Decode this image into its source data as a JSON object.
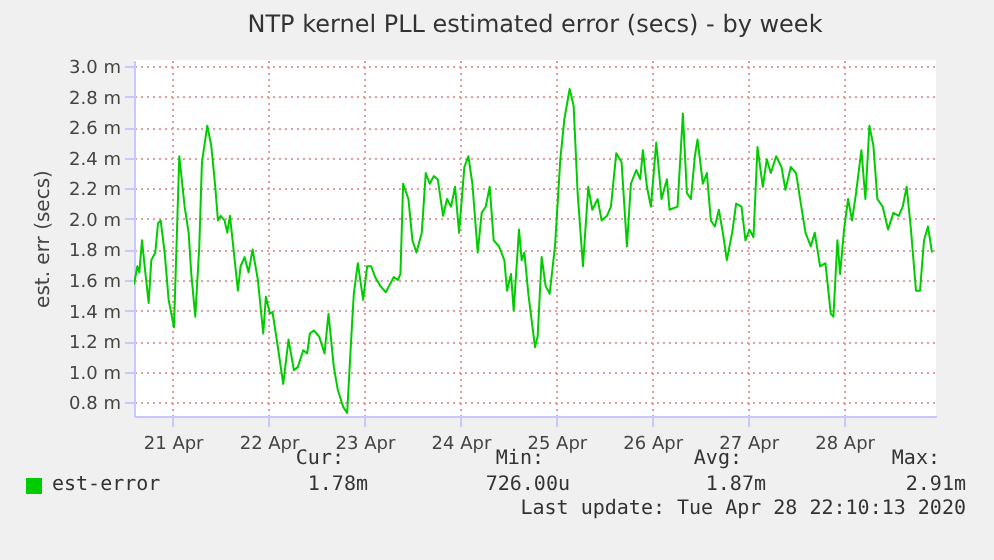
{
  "chart_data": {
    "type": "line",
    "title": "NTP kernel PLL estimated error (secs) - by week",
    "ylabel": "est. err (secs)",
    "xlim": [
      "2020-04-20T14:20",
      "2020-04-28T23:00"
    ],
    "xticks": [
      {
        "value": "2020-04-21T00:00",
        "label": "21 Apr"
      },
      {
        "value": "2020-04-22T00:00",
        "label": "22 Apr"
      },
      {
        "value": "2020-04-23T00:00",
        "label": "23 Apr"
      },
      {
        "value": "2020-04-24T00:00",
        "label": "24 Apr"
      },
      {
        "value": "2020-04-25T00:00",
        "label": "25 Apr"
      },
      {
        "value": "2020-04-26T00:00",
        "label": "26 Apr"
      },
      {
        "value": "2020-04-27T00:00",
        "label": "27 Apr"
      },
      {
        "value": "2020-04-28T00:00",
        "label": "28 Apr"
      }
    ],
    "ylim": [
      0.71,
      3.04
    ],
    "yticks": [
      {
        "value": 0.8,
        "label": "0.8 m"
      },
      {
        "value": 1.0,
        "label": "1.0 m"
      },
      {
        "value": 1.2,
        "label": "1.2 m"
      },
      {
        "value": 1.4,
        "label": "1.4 m"
      },
      {
        "value": 1.6,
        "label": "1.6 m"
      },
      {
        "value": 1.8,
        "label": "1.8 m"
      },
      {
        "value": 2.0,
        "label": "2.0 m"
      },
      {
        "value": 2.2,
        "label": "2.2 m"
      },
      {
        "value": 2.4,
        "label": "2.4 m"
      },
      {
        "value": 2.6,
        "label": "2.6 m"
      },
      {
        "value": 2.8,
        "label": "2.8 m"
      },
      {
        "value": 3.0,
        "label": "3.0 m"
      }
    ],
    "grid": true,
    "legend": "bottom left",
    "annotations": [
      "Cur:",
      "Min:",
      "Avg:",
      "Max:",
      "1.78m",
      "726.00u",
      "1.87m",
      "2.91m",
      "Last update: Tue Apr 28 22:10:13 2020"
    ],
    "series": [
      {
        "name": "est-error",
        "color": "#00cc00",
        "x": [
          "2020-04-20T14:20",
          "2020-04-20T15:10",
          "2020-04-20T15:40",
          "2020-04-20T16:20",
          "2020-04-20T17:00",
          "2020-04-20T18:00",
          "2020-04-20T18:40",
          "2020-04-20T19:40",
          "2020-04-20T20:20",
          "2020-04-20T21:00",
          "2020-04-20T22:00",
          "2020-04-20T23:00",
          "2020-04-21T00:20",
          "2020-04-21T01:40",
          "2020-04-21T03:00",
          "2020-04-21T04:00",
          "2020-04-21T04:40",
          "2020-04-21T05:40",
          "2020-04-21T06:40",
          "2020-04-21T07:20",
          "2020-04-21T08:40",
          "2020-04-21T09:40",
          "2020-04-21T10:40",
          "2020-04-21T11:20",
          "2020-04-21T12:00",
          "2020-04-21T13:00",
          "2020-04-21T13:40",
          "2020-04-21T14:20",
          "2020-04-21T15:00",
          "2020-04-21T16:20",
          "2020-04-21T17:00",
          "2020-04-21T18:00",
          "2020-04-21T19:00",
          "2020-04-21T20:00",
          "2020-04-21T21:20",
          "2020-04-21T22:40",
          "2020-04-21T23:20",
          "2020-04-22T00:20",
          "2020-04-22T01:00",
          "2020-04-22T02:20",
          "2020-04-22T03:40",
          "2020-04-22T05:00",
          "2020-04-22T06:20",
          "2020-04-22T07:20",
          "2020-04-22T08:40",
          "2020-04-22T09:40",
          "2020-04-22T10:20",
          "2020-04-22T11:20",
          "2020-04-22T12:40",
          "2020-04-22T14:00",
          "2020-04-22T15:00",
          "2020-04-22T16:20",
          "2020-04-22T17:20",
          "2020-04-22T18:40",
          "2020-04-22T19:40",
          "2020-04-22T20:40",
          "2020-04-22T21:20",
          "2020-04-22T22:20",
          "2020-04-22T23:40",
          "2020-04-23T00:40",
          "2020-04-23T01:40",
          "2020-04-23T02:40",
          "2020-04-23T04:00",
          "2020-04-23T05:20",
          "2020-04-23T06:20",
          "2020-04-23T07:20",
          "2020-04-23T08:20",
          "2020-04-23T09:00",
          "2020-04-23T09:40",
          "2020-04-23T11:00",
          "2020-04-23T12:00",
          "2020-04-23T13:00",
          "2020-04-23T14:20",
          "2020-04-23T15:20",
          "2020-04-23T16:20",
          "2020-04-23T17:20",
          "2020-04-23T18:20",
          "2020-04-23T19:40",
          "2020-04-23T20:40",
          "2020-04-23T21:40",
          "2020-04-23T22:40",
          "2020-04-23T23:40",
          "2020-04-24T01:00",
          "2020-04-24T02:00",
          "2020-04-24T03:00",
          "2020-04-24T04:20",
          "2020-04-24T05:20",
          "2020-04-24T06:20",
          "2020-04-24T07:20",
          "2020-04-24T08:20",
          "2020-04-24T09:40",
          "2020-04-24T11:00",
          "2020-04-24T11:40",
          "2020-04-24T12:40",
          "2020-04-24T13:20",
          "2020-04-24T14:40",
          "2020-04-24T15:20",
          "2020-04-24T16:00",
          "2020-04-24T17:00",
          "2020-04-24T18:40",
          "2020-04-24T19:20",
          "2020-04-24T20:20",
          "2020-04-24T21:20",
          "2020-04-24T22:20",
          "2020-04-24T23:40",
          "2020-04-25T01:00",
          "2020-04-25T02:00",
          "2020-04-25T03:20",
          "2020-04-25T04:20",
          "2020-04-25T05:20",
          "2020-04-25T06:40",
          "2020-04-25T08:00",
          "2020-04-25T09:00",
          "2020-04-25T10:20",
          "2020-04-25T11:20",
          "2020-04-25T12:40",
          "2020-04-25T13:40",
          "2020-04-25T15:00",
          "2020-04-25T16:20",
          "2020-04-25T17:40",
          "2020-04-25T18:40",
          "2020-04-25T20:00",
          "2020-04-25T21:00",
          "2020-04-25T21:40",
          "2020-04-25T22:40",
          "2020-04-25T23:40",
          "2020-04-26T01:00",
          "2020-04-26T02:20",
          "2020-04-26T03:40",
          "2020-04-26T04:20",
          "2020-04-26T06:20",
          "2020-04-26T07:40",
          "2020-04-26T08:40",
          "2020-04-26T09:40",
          "2020-04-26T10:40",
          "2020-04-26T11:20",
          "2020-04-26T12:40",
          "2020-04-26T13:40",
          "2020-04-26T14:40",
          "2020-04-26T15:40",
          "2020-04-26T16:40",
          "2020-04-26T17:40",
          "2020-04-26T18:40",
          "2020-04-26T20:00",
          "2020-04-26T21:00",
          "2020-04-26T22:20",
          "2020-04-26T23:20",
          "2020-04-27T00:20",
          "2020-04-27T01:20",
          "2020-04-27T02:20",
          "2020-04-27T03:40",
          "2020-04-27T04:40",
          "2020-04-27T05:40",
          "2020-04-27T07:00",
          "2020-04-27T08:20",
          "2020-04-27T09:20",
          "2020-04-27T10:40",
          "2020-04-27T12:00",
          "2020-04-27T13:00",
          "2020-04-27T14:20",
          "2020-04-27T15:40",
          "2020-04-27T16:40",
          "2020-04-27T18:00",
          "2020-04-27T19:20",
          "2020-04-27T20:40",
          "2020-04-27T21:20",
          "2020-04-27T22:20",
          "2020-04-27T23:00",
          "2020-04-28T00:00",
          "2020-04-28T01:00",
          "2020-04-28T02:00",
          "2020-04-28T03:00",
          "2020-04-28T04:20",
          "2020-04-28T05:20",
          "2020-04-28T06:20",
          "2020-04-28T07:20",
          "2020-04-28T08:20",
          "2020-04-28T09:40",
          "2020-04-28T11:00",
          "2020-04-28T12:20",
          "2020-04-28T13:40",
          "2020-04-28T14:40",
          "2020-04-28T15:40",
          "2020-04-28T16:40",
          "2020-04-28T18:00",
          "2020-04-28T19:00",
          "2020-04-28T20:00",
          "2020-04-28T21:00",
          "2020-04-28T22:00"
        ],
        "values": [
          1.57,
          1.69,
          1.65,
          1.86,
          1.69,
          1.45,
          1.73,
          1.78,
          1.97,
          1.99,
          1.78,
          1.47,
          1.29,
          2.41,
          2.08,
          1.91,
          1.64,
          1.36,
          1.82,
          2.37,
          2.61,
          2.48,
          2.21,
          1.99,
          2.02,
          1.99,
          1.91,
          2.02,
          1.86,
          1.53,
          1.69,
          1.75,
          1.65,
          1.8,
          1.6,
          1.25,
          1.49,
          1.38,
          1.39,
          1.16,
          0.92,
          1.21,
          1.01,
          1.03,
          1.14,
          1.12,
          1.25,
          1.27,
          1.23,
          1.12,
          1.38,
          1.03,
          0.88,
          0.77,
          0.73,
          1.21,
          1.51,
          1.71,
          1.47,
          1.69,
          1.69,
          1.62,
          1.56,
          1.52,
          1.57,
          1.62,
          1.6,
          1.64,
          2.23,
          2.13,
          1.86,
          1.78,
          1.91,
          2.3,
          2.23,
          2.28,
          2.26,
          2.02,
          2.13,
          2.08,
          2.21,
          1.91,
          2.34,
          2.41,
          2.23,
          1.78,
          2.04,
          2.08,
          2.21,
          1.86,
          1.82,
          1.73,
          1.53,
          1.64,
          1.4,
          1.93,
          1.73,
          1.78,
          1.51,
          1.16,
          1.23,
          1.75,
          1.56,
          1.51,
          1.82,
          2.39,
          2.65,
          2.85,
          2.74,
          2.17,
          1.69,
          2.21,
          2.06,
          2.13,
          1.99,
          2.02,
          2.08,
          2.43,
          2.37,
          1.82,
          2.23,
          2.32,
          2.26,
          2.45,
          2.21,
          2.08,
          2.5,
          2.13,
          2.26,
          2.06,
          2.08,
          2.69,
          2.17,
          2.13,
          2.41,
          2.52,
          2.23,
          2.3,
          1.99,
          1.95,
          2.06,
          1.91,
          1.73,
          1.91,
          2.1,
          2.08,
          1.86,
          1.93,
          1.88,
          2.47,
          2.21,
          2.39,
          2.3,
          2.41,
          2.34,
          2.19,
          2.34,
          2.3,
          2.13,
          1.91,
          1.82,
          1.91,
          1.69,
          1.71,
          1.38,
          1.36,
          1.86,
          1.64,
          1.93,
          2.13,
          1.99,
          2.17,
          2.45,
          2.13,
          2.61,
          2.48,
          2.13,
          2.08,
          1.93,
          2.04,
          2.02,
          2.08,
          2.21,
          1.95,
          1.53,
          1.53,
          1.86,
          1.95,
          1.78
        ]
      }
    ]
  }
}
